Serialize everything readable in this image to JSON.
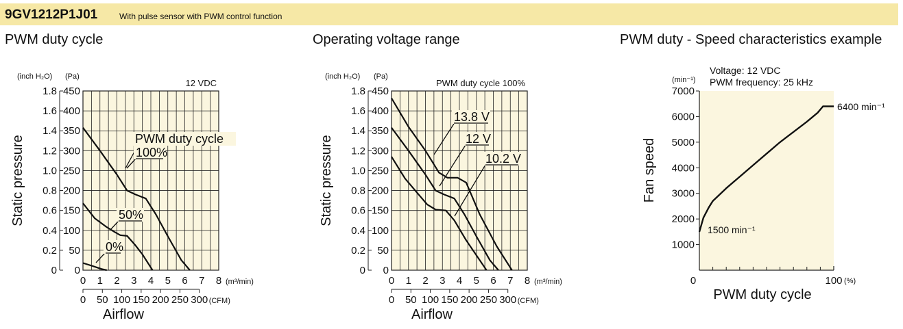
{
  "header": {
    "model": "9GV1212P1J01",
    "description": "With pulse sensor with PWM control function",
    "background": "#f6e8a6"
  },
  "panels": [
    {
      "title": "PWM duty cycle"
    },
    {
      "title": "Operating voltage range"
    },
    {
      "title": "PWM duty - Speed characteristics example"
    }
  ],
  "colors": {
    "plot_bg": "#fbf6df",
    "grid": "#222222",
    "line": "#111111"
  },
  "chart_data": [
    {
      "type": "line",
      "ylabel": "Static pressure",
      "xlabel": "Airflow",
      "y_unit_left": "(inch H₂O)",
      "y_unit_right": "(Pa)",
      "x_unit_top": "(m³/min)",
      "x_unit_bottom": "(CFM)",
      "y_ticks_pa": [
        "0",
        "50",
        "100",
        "150",
        "200",
        "250",
        "300",
        "350",
        "400",
        "450"
      ],
      "y_ticks_inch": [
        "0",
        "0.2",
        "0.4",
        "0.6",
        "0.8",
        "1.0",
        "1.2",
        "1.4",
        "1.6",
        "1.8"
      ],
      "x_ticks_m3": [
        "0",
        "1",
        "2",
        "3",
        "4",
        "5",
        "6",
        "7",
        "8"
      ],
      "x_ticks_cfm": [
        "0",
        "50",
        "100",
        "150",
        "200",
        "250",
        "300"
      ],
      "xlim": [
        0,
        8
      ],
      "ylim": [
        0,
        450
      ],
      "grid": true,
      "condition": "12 VDC",
      "legend_title": "PWM duty cycle",
      "series": [
        {
          "name": "100%",
          "x": [
            0,
            1,
            2,
            2.6,
            3.1,
            3.7,
            4.3,
            5.0,
            5.8,
            6.3
          ],
          "y": [
            358,
            300,
            240,
            200,
            190,
            180,
            140,
            85,
            25,
            0
          ]
        },
        {
          "name": "50%",
          "x": [
            0,
            0.7,
            1.4,
            1.9,
            2.2,
            2.6,
            3.1,
            3.5,
            4.1
          ],
          "y": [
            168,
            130,
            108,
            95,
            88,
            86,
            62,
            40,
            0
          ]
        },
        {
          "name": "0%",
          "x": [
            0,
            0.6,
            1.1,
            1.4
          ],
          "y": [
            18,
            10,
            3,
            0
          ]
        }
      ]
    },
    {
      "type": "line",
      "ylabel": "Static pressure",
      "xlabel": "Airflow",
      "y_unit_left": "(inch H₂O)",
      "y_unit_right": "(Pa)",
      "x_unit_top": "(m³/min)",
      "x_unit_bottom": "(CFM)",
      "y_ticks_pa": [
        "0",
        "50",
        "100",
        "150",
        "200",
        "250",
        "300",
        "350",
        "400",
        "450"
      ],
      "y_ticks_inch": [
        "0",
        "0.2",
        "0.4",
        "0.6",
        "0.8",
        "1.0",
        "1.2",
        "1.4",
        "1.6",
        "1.8"
      ],
      "x_ticks_m3": [
        "0",
        "1",
        "2",
        "3",
        "4",
        "5",
        "6",
        "7",
        "8"
      ],
      "x_ticks_cfm": [
        "0",
        "50",
        "100",
        "150",
        "200",
        "250",
        "300"
      ],
      "xlim": [
        0,
        8
      ],
      "ylim": [
        0,
        450
      ],
      "grid": true,
      "condition": "PWM duty cycle 100%",
      "series": [
        {
          "name": "13.8 V",
          "x": [
            0,
            1,
            2,
            2.8,
            3.3,
            3.9,
            4.4,
            5.2,
            6.2,
            7.1
          ],
          "y": [
            432,
            360,
            300,
            245,
            232,
            232,
            220,
            140,
            60,
            0
          ]
        },
        {
          "name": "12 V",
          "x": [
            0,
            1,
            2,
            2.6,
            3.1,
            3.7,
            4.3,
            5.0,
            5.8,
            6.3
          ],
          "y": [
            358,
            300,
            240,
            200,
            190,
            180,
            140,
            85,
            25,
            0
          ]
        },
        {
          "name": "10.2 V",
          "x": [
            0,
            0.8,
            1.6,
            2.1,
            2.6,
            3.2,
            3.7,
            4.4,
            5.6
          ],
          "y": [
            285,
            230,
            190,
            165,
            152,
            150,
            125,
            75,
            0
          ]
        }
      ]
    },
    {
      "type": "line",
      "ylabel": "Fan speed",
      "xlabel": "PWM duty cycle",
      "y_unit": "(min⁻¹)",
      "x_unit": "(%)",
      "y_ticks": [
        "1000",
        "2000",
        "3000",
        "4000",
        "5000",
        "6000",
        "7000"
      ],
      "x_tick_labels": [
        "0",
        "100"
      ],
      "xlim": [
        0,
        100
      ],
      "ylim": [
        0,
        7000
      ],
      "grid": false,
      "condition_lines": [
        "Voltage: 12 VDC",
        "PWM frequency: 25 kHz"
      ],
      "annotations": [
        "1500 min⁻¹",
        "6400 min⁻¹"
      ],
      "series": [
        {
          "name": "",
          "x": [
            0,
            3,
            7,
            10,
            20,
            30,
            40,
            50,
            60,
            70,
            80,
            88,
            92,
            95,
            100
          ],
          "y": [
            1500,
            2050,
            2450,
            2700,
            3200,
            3650,
            4100,
            4550,
            5000,
            5400,
            5800,
            6150,
            6400,
            6400,
            6400
          ]
        }
      ]
    }
  ]
}
